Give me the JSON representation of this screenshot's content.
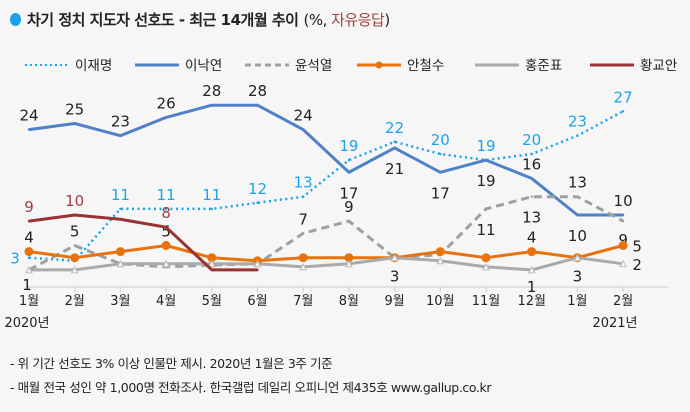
{
  "title": {
    "main": "차기 정치 지도자 선호도 - 최근 14개월 추이",
    "unit_prefix": "(%, ",
    "unit_highlight": "자유응답",
    "unit_suffix": ")"
  },
  "chart_data": {
    "type": "line",
    "title": "차기 정치 지도자 선호도 - 최근 14개월 추이 (%, 자유응답)",
    "categories": [
      "1월",
      "2월",
      "3월",
      "4월",
      "5월",
      "6월",
      "7월",
      "8월",
      "9월",
      "10월",
      "11월",
      "12월",
      "1월",
      "2월"
    ],
    "year_labels": [
      "2020년",
      "2021년"
    ],
    "ylim": [
      0,
      30
    ],
    "grid": false,
    "legend_position": "top",
    "series": [
      {
        "name": "이재명",
        "color": "#1aa3ec",
        "style": "dotted",
        "values": [
          3,
          2.5,
          11,
          11,
          11,
          12,
          13,
          19,
          22,
          20,
          19,
          20,
          23,
          27
        ],
        "labels": [
          "3",
          null,
          "11",
          "11",
          "11",
          "12",
          "13",
          "19",
          "22",
          "20",
          "19",
          "20",
          "23",
          "27"
        ]
      },
      {
        "name": "이낙연",
        "color": "#4f81c7",
        "style": "solid",
        "values": [
          24,
          25,
          23,
          26,
          28,
          28,
          24,
          17,
          21,
          17,
          19,
          16,
          10,
          10
        ],
        "labels": [
          "24",
          "25",
          "23",
          "26",
          "28",
          "28",
          "24",
          "17",
          "21",
          "17",
          "19",
          "16",
          "10",
          "10"
        ]
      },
      {
        "name": "윤석열",
        "color": "#a0a0a0",
        "style": "dashed",
        "values": [
          1,
          5,
          2,
          1.5,
          1.8,
          2,
          7,
          9,
          3,
          3.5,
          11,
          13,
          13,
          9
        ],
        "labels": [
          null,
          "5",
          null,
          null,
          null,
          null,
          "7",
          "9",
          "3",
          null,
          "11",
          "13",
          "13",
          "9"
        ]
      },
      {
        "name": "안철수",
        "color": "#e8720c",
        "style": "solid-dot",
        "values": [
          4,
          3,
          4,
          5,
          3,
          2.5,
          3,
          3,
          3,
          4,
          3,
          4,
          3,
          5
        ],
        "labels": [
          "4",
          null,
          null,
          "5",
          null,
          null,
          null,
          null,
          null,
          null,
          null,
          "4",
          null,
          "5"
        ]
      },
      {
        "name": "홍준표",
        "color": "#aaaaaa",
        "style": "solid-triangle",
        "values": [
          1,
          1,
          2,
          2,
          2,
          2,
          1.5,
          2,
          3,
          2.5,
          1.5,
          1,
          3,
          2
        ],
        "labels": [
          "1",
          null,
          null,
          null,
          null,
          null,
          null,
          null,
          null,
          null,
          null,
          "1",
          "3",
          "2"
        ]
      },
      {
        "name": "황교안",
        "color": "#993333",
        "style": "solid",
        "values": [
          9,
          10,
          9.3,
          8,
          1,
          1,
          null,
          null,
          null,
          null,
          null,
          null,
          null,
          null
        ],
        "labels": [
          "9",
          "10",
          null,
          "8",
          null,
          null,
          null,
          null,
          null,
          null,
          null,
          null,
          null,
          null
        ]
      }
    ]
  },
  "notes": [
    "- 위 기간 선호도 3% 이상 인물만 제시. 2020년 1월은 3주 기준",
    "- 매월 전국 성인 약 1,000명 전화조사. 한국갤럽 데일리 오피니언 제435호 www.gallup.co.kr"
  ]
}
